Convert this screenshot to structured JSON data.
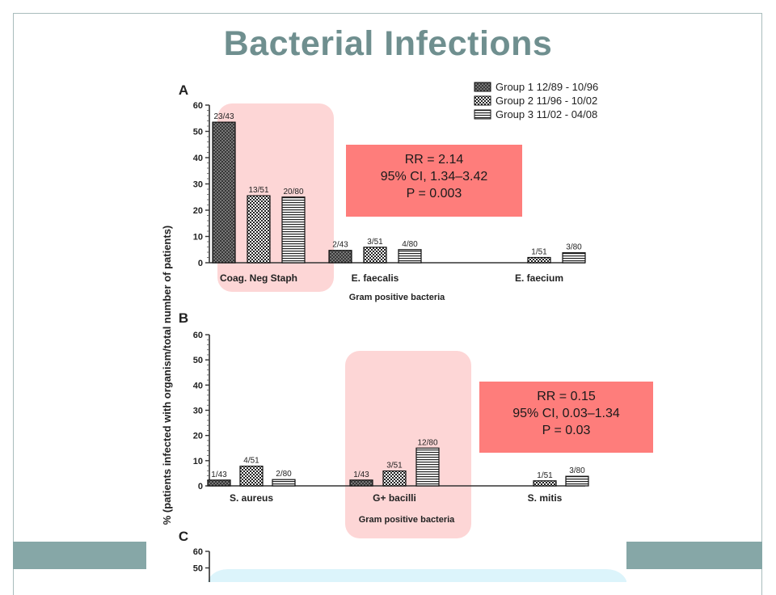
{
  "slide": {
    "title": "Bacterial Infections"
  },
  "colors": {
    "highlight": "#fdd6d6",
    "stats_box": "#fe7d7b",
    "band": "#86a7a7",
    "title": "#6f8f8f",
    "panel_c_bg": "#dcf4fb"
  },
  "y_axis_label": "% (patients infected with organism/total number of patients)",
  "legend": [
    "Group 1 12/89 - 10/96",
    "Group 2 11/96 - 10/02",
    "Group 3 11/02 - 04/08"
  ],
  "stats_boxes": [
    {
      "lines": [
        "RR = 2.14",
        "95% CI, 1.34–3.42",
        "P = 0.003"
      ]
    },
    {
      "lines": [
        "RR = 0.15",
        "95% CI, 0.03–1.34",
        "P = 0.03"
      ]
    }
  ],
  "chart_data": [
    {
      "type": "bar",
      "panel": "A",
      "xlabel": "Gram positive bacteria",
      "ylim": [
        0,
        60
      ],
      "yticks": [
        0,
        10,
        20,
        30,
        40,
        50,
        60
      ],
      "categories": [
        "Coag. Neg Staph",
        "E. faecalis",
        "E. faecium"
      ],
      "series": [
        {
          "name": "Group 1 12/89 - 10/96",
          "values": [
            53.5,
            4.7,
            null
          ],
          "labels": [
            "23/43",
            "2/43",
            ""
          ]
        },
        {
          "name": "Group 2 11/96 - 10/02",
          "values": [
            25.5,
            5.9,
            2.0
          ],
          "labels": [
            "13/51",
            "3/51",
            "1/51"
          ]
        },
        {
          "name": "Group 3 11/02 - 04/08",
          "values": [
            25.0,
            5.0,
            3.8
          ],
          "labels": [
            "20/80",
            "4/80",
            "3/80"
          ]
        }
      ],
      "highlight_category": "Coag. Neg Staph"
    },
    {
      "type": "bar",
      "panel": "B",
      "xlabel": "Gram positive bacteria",
      "ylim": [
        0,
        60
      ],
      "yticks": [
        0,
        10,
        20,
        30,
        40,
        50,
        60
      ],
      "categories": [
        "S. aureus",
        "G+ bacilli",
        "S. mitis"
      ],
      "series": [
        {
          "name": "Group 1 12/89 - 10/96",
          "values": [
            2.3,
            2.3,
            null
          ],
          "labels": [
            "1/43",
            "1/43",
            ""
          ]
        },
        {
          "name": "Group 2 11/96 - 10/02",
          "values": [
            7.8,
            5.9,
            2.0
          ],
          "labels": [
            "4/51",
            "3/51",
            "1/51"
          ]
        },
        {
          "name": "Group 3 11/02 - 04/08",
          "values": [
            2.5,
            15.0,
            3.8
          ],
          "labels": [
            "2/80",
            "12/80",
            "3/80"
          ]
        }
      ],
      "highlight_category": "G+ bacilli"
    },
    {
      "type": "bar",
      "panel": "C",
      "ylim": [
        0,
        60
      ],
      "yticks": [
        50,
        60
      ],
      "categories": [],
      "series": []
    }
  ]
}
